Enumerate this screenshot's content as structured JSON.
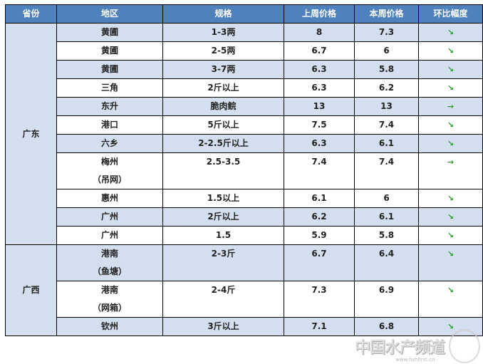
{
  "headers": [
    "省份",
    "地区",
    "规格",
    "上周价格",
    "本周价格",
    "环比幅度"
  ],
  "provinces": [
    "广东",
    "广西"
  ],
  "rows": [
    {
      "region": "黄圃",
      "spec": "1-3两",
      "last": "8",
      "this": "7.3",
      "trend": "↘"
    },
    {
      "region": "黄圃",
      "spec": "2-5两",
      "last": "6.7",
      "this": "6",
      "trend": "↘"
    },
    {
      "region": "黄圃",
      "spec": "3-7两",
      "last": "6.3",
      "this": "5.8",
      "trend": "↘"
    },
    {
      "region": "三角",
      "spec": "2斤以上",
      "last": "6.3",
      "this": "6.2",
      "trend": "↘"
    },
    {
      "region": "东升",
      "spec": "脆肉鲩",
      "last": "13",
      "this": "13",
      "trend": "→"
    },
    {
      "region": "港口",
      "spec": "5斤以上",
      "last": "7.5",
      "this": "7.4",
      "trend": "↘"
    },
    {
      "region": "六乡",
      "spec": "2-2.5斤以上",
      "last": "6.3",
      "this": "6.1",
      "trend": "↘"
    },
    {
      "region": "梅州",
      "region_note": "（吊网）",
      "spec": "2.5-3.5",
      "last": "7.4",
      "this": "7.4",
      "trend": "→"
    },
    {
      "region": "惠州",
      "spec": "1.5以上",
      "last": "6.1",
      "this": "6",
      "trend": "↘"
    },
    {
      "region": "广州",
      "spec": "2斤以上",
      "last": "6.2",
      "this": "6.1",
      "trend": "↘"
    },
    {
      "region": "广州",
      "spec": "1.5",
      "last": "5.9",
      "this": "5.8",
      "trend": "↘"
    },
    {
      "region": "港南",
      "region_note": "（鱼塘）",
      "spec": "2-3斤",
      "last": "6.7",
      "this": "6.4",
      "trend": "↘"
    },
    {
      "region": "港南",
      "region_note": "（网箱）",
      "spec": "2-4斤",
      "last": "7.3",
      "this": "6.9",
      "trend": "↘"
    },
    {
      "region": "钦州",
      "spec": "3斤以上",
      "last": "7.1",
      "this": "6.8",
      "trend": "↘"
    }
  ],
  "watermark": {
    "text": "中国水产频道",
    "url": "www.fishfirst.cn"
  },
  "colors": {
    "header": "#4f81bd",
    "stripe": "#d3deef",
    "trend": "#2a9d2a"
  }
}
